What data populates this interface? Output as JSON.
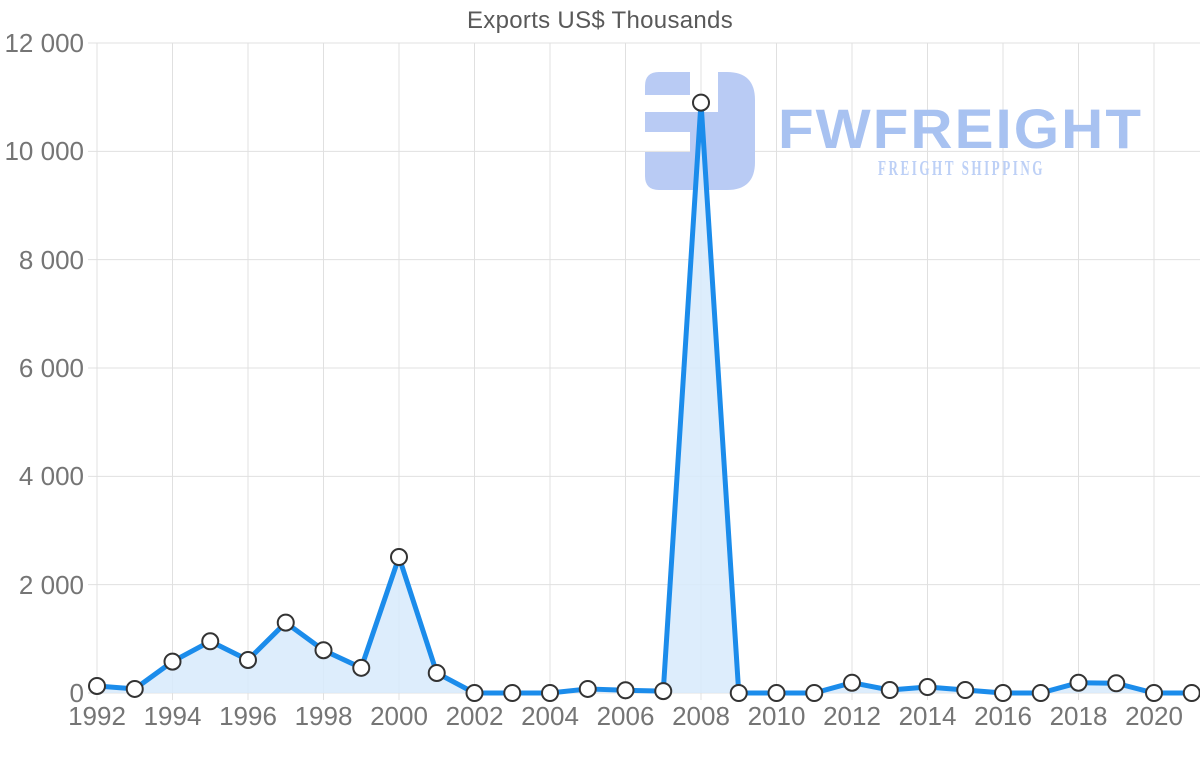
{
  "title": "Exports US$ Thousands",
  "watermark": {
    "brand": "FWFREIGHT",
    "tagline": "FREIGHT SHIPPING"
  },
  "colors": {
    "line": "#1b8ceb",
    "area": "#d7eafc",
    "marker_fill": "#ffffff",
    "marker_stroke": "#333333",
    "grid": "#e0e0e0",
    "axis_text": "#757575",
    "title_text": "#595959",
    "watermark_glyph": "#b9cbf4",
    "watermark_brand": "#a8c2f1",
    "watermark_tagline": "#bdd0f6"
  },
  "chart_data": {
    "type": "area",
    "title": "Exports US$ Thousands",
    "xlabel": "",
    "ylabel": "",
    "x": [
      1992,
      1993,
      1994,
      1995,
      1996,
      1997,
      1998,
      1999,
      2000,
      2001,
      2002,
      2003,
      2004,
      2005,
      2006,
      2007,
      2008,
      2009,
      2010,
      2011,
      2012,
      2013,
      2014,
      2015,
      2016,
      2017,
      2018,
      2019,
      2020,
      2021
    ],
    "values": [
      130,
      75,
      580,
      955,
      610,
      1300,
      790,
      465,
      2510,
      370,
      0,
      0,
      0,
      75,
      50,
      35,
      10900,
      0,
      0,
      0,
      190,
      55,
      110,
      55,
      0,
      0,
      190,
      180,
      0,
      0
    ],
    "ylim": [
      0,
      12000
    ],
    "yticks": [
      0,
      2000,
      4000,
      6000,
      8000,
      10000,
      12000
    ],
    "ytick_labels": [
      "0",
      "2 000",
      "4 000",
      "6 000",
      "8 000",
      "10 000",
      "12 000"
    ],
    "xticks": [
      1992,
      1994,
      1996,
      1998,
      2000,
      2002,
      2004,
      2006,
      2008,
      2010,
      2012,
      2014,
      2016,
      2018,
      2020
    ],
    "xtick_labels": [
      "1992",
      "1994",
      "1996",
      "1998",
      "2000",
      "2002",
      "2004",
      "2006",
      "2008",
      "2010",
      "2012",
      "2014",
      "2016",
      "2018",
      "2020"
    ],
    "grid": true,
    "legend": "none",
    "marker": "circle-white-outlined"
  }
}
